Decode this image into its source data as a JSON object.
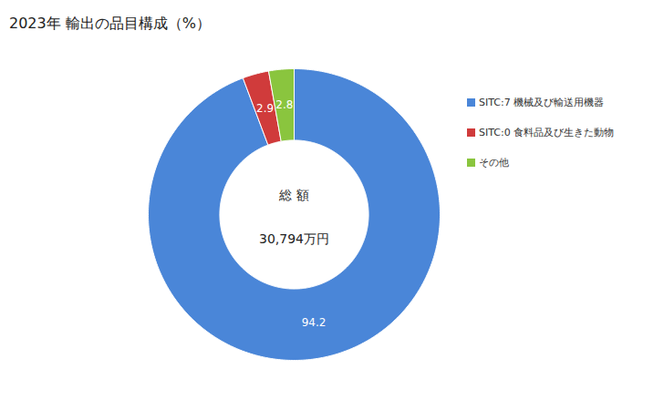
{
  "chart_data": {
    "type": "donut",
    "title": "2023年 輸出の品目構成（%）",
    "categories": [
      "SITC:7 機械及び輸送用機器",
      "SITC:0 食料品及び生きた動物",
      "その他"
    ],
    "values": [
      94.2,
      2.9,
      2.8
    ],
    "colors": [
      "#4a86d8",
      "#d03b3b",
      "#8ac53e"
    ],
    "data_labels": true,
    "legend": "right",
    "annotations": [
      "総 額",
      "30,794万円"
    ]
  }
}
